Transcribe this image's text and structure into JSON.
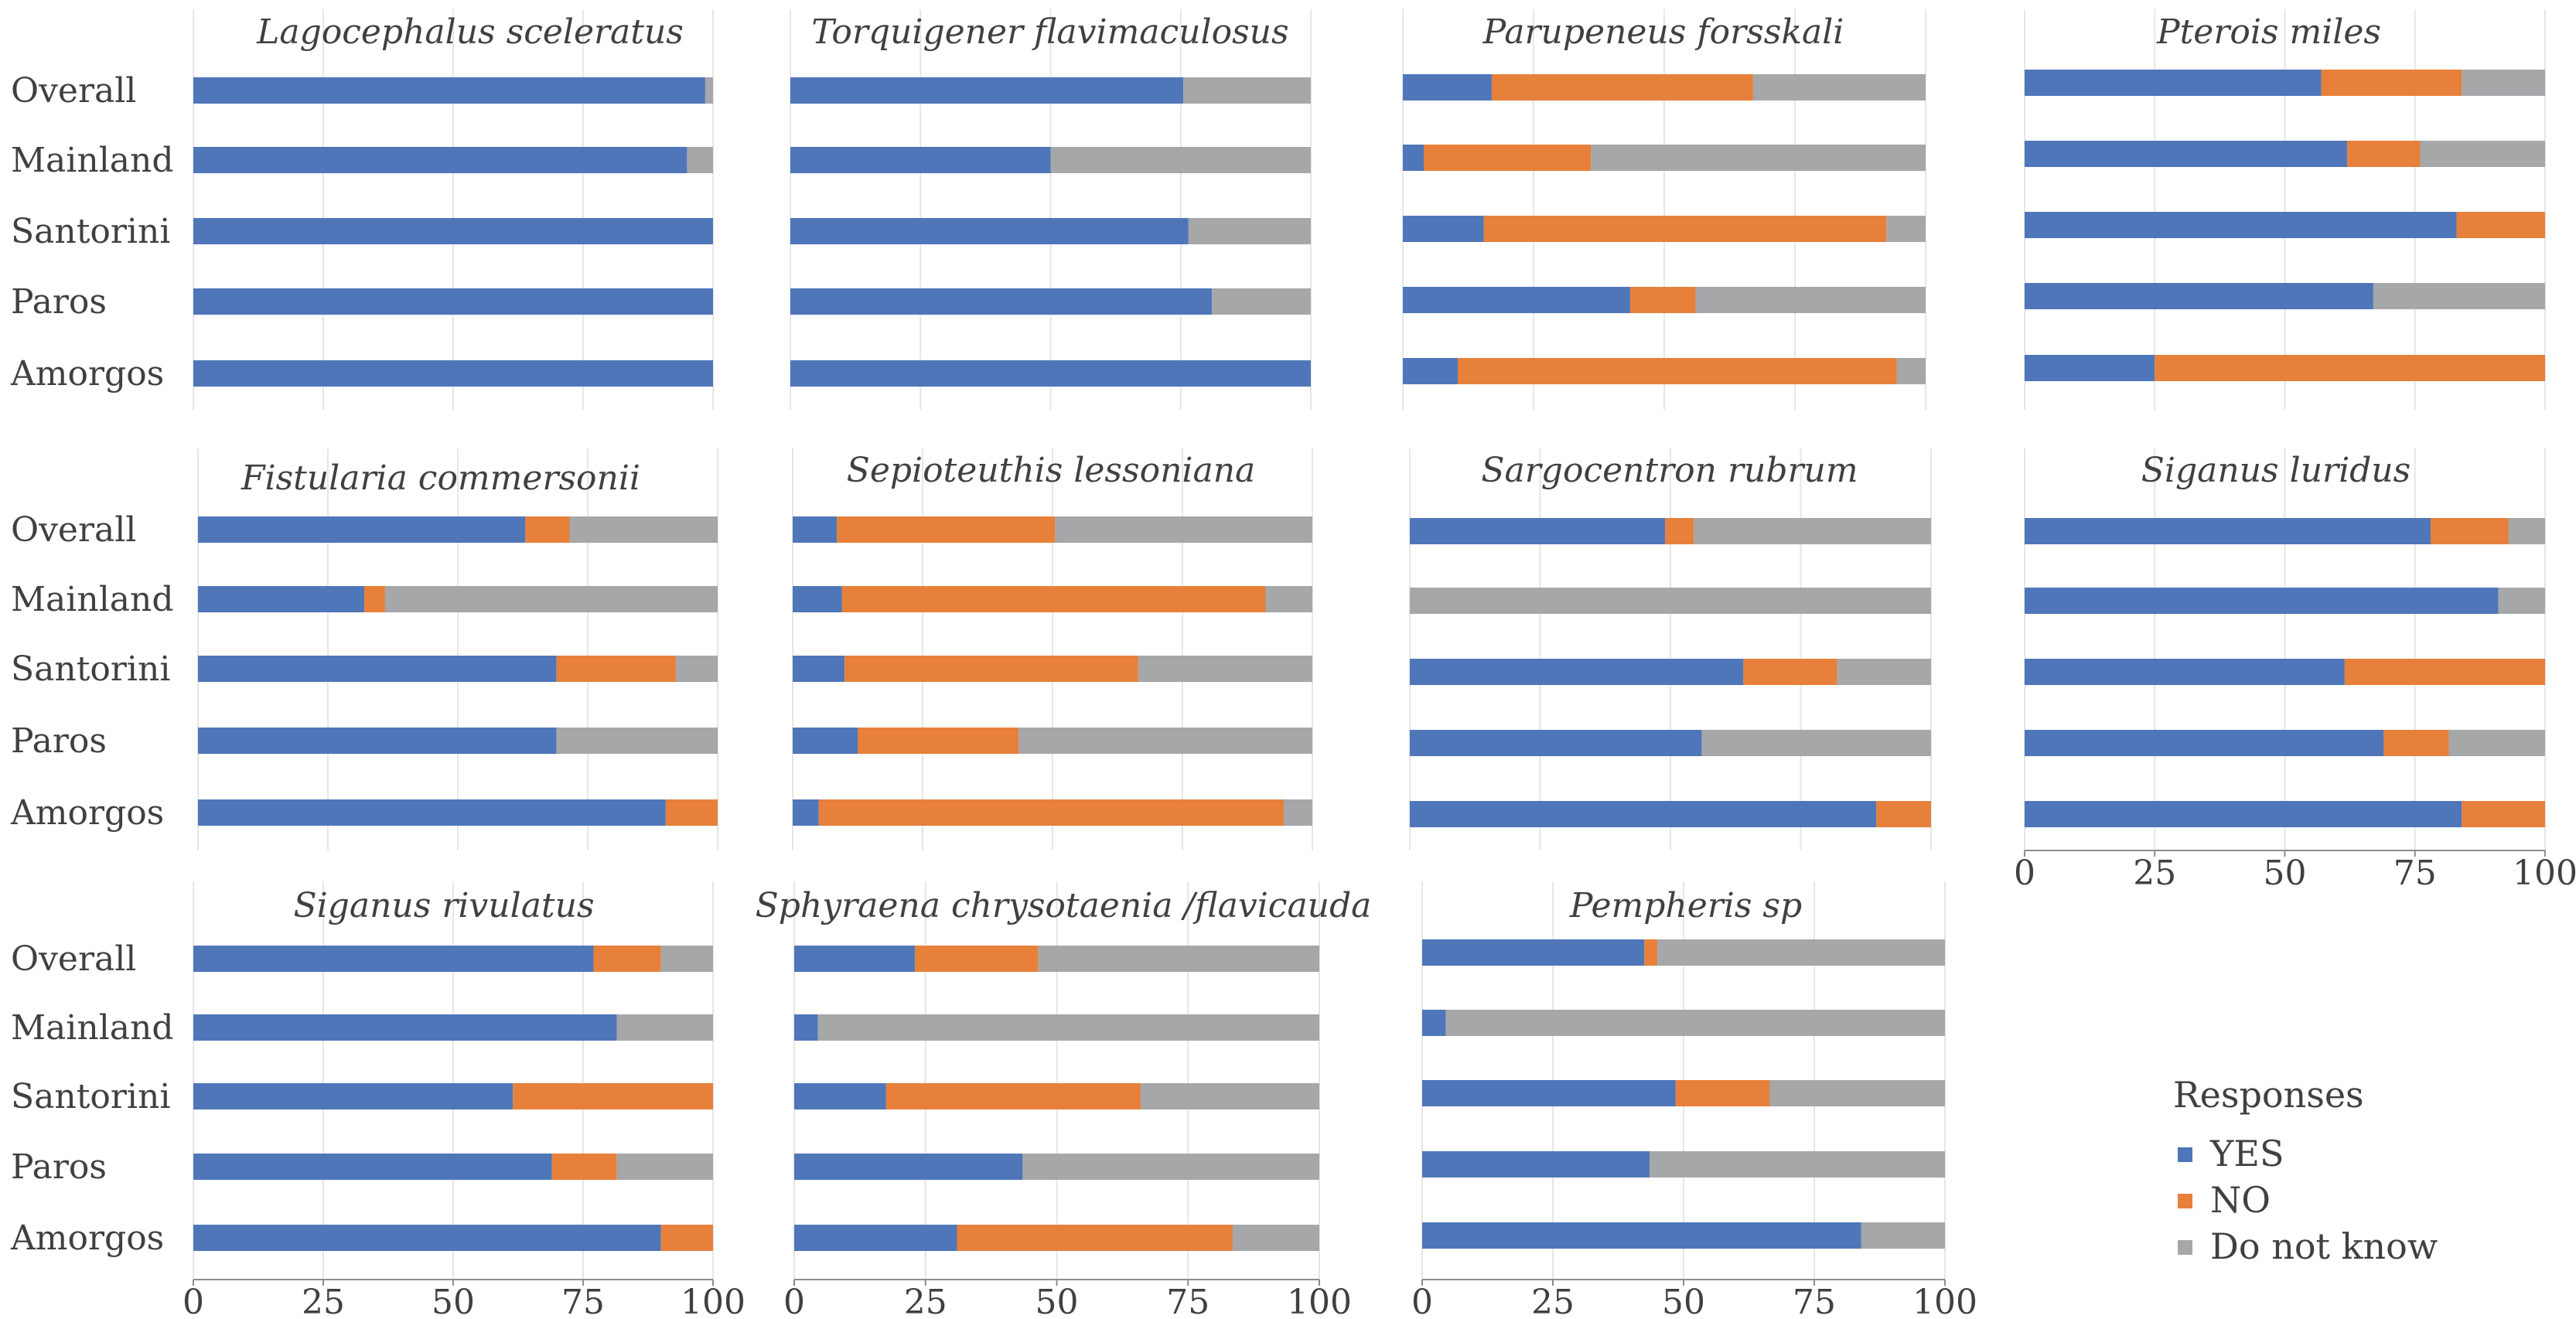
{
  "colors": {
    "yes": "#4F76B9",
    "no": "#E6803A",
    "dk": "#A5A7A9",
    "grid": "#E6E6E6",
    "axis": "#8C8C8C",
    "text": "#404040"
  },
  "categories": [
    "Overall",
    "Mainland",
    "Santorini",
    "Paros",
    "Amorgos"
  ],
  "x_ticks": [
    "0",
    "25",
    "50",
    "75",
    "100"
  ],
  "legend": {
    "title": "Responses",
    "items": [
      {
        "key": "yes",
        "label": "YES"
      },
      {
        "key": "no",
        "label": "NO"
      },
      {
        "key": "dk",
        "label": "Do not know"
      }
    ]
  },
  "chart_data": [
    {
      "type": "bar",
      "title": "Lagocephalus sceleratus",
      "xlim": [
        0,
        100
      ],
      "stacked": true,
      "orientation": "horizontal",
      "series": [
        {
          "name": "YES",
          "values": [
            98.5,
            95,
            100,
            100,
            100
          ]
        },
        {
          "name": "NO",
          "values": [
            0,
            0,
            0,
            0,
            0
          ]
        },
        {
          "name": "Do not know",
          "values": [
            1.5,
            5,
            0,
            0,
            0
          ]
        }
      ]
    },
    {
      "type": "bar",
      "title": "Torquigener flavimaculosus",
      "xlim": [
        0,
        100
      ],
      "stacked": true,
      "orientation": "horizontal",
      "series": [
        {
          "name": "YES",
          "values": [
            75.5,
            50,
            76.5,
            81,
            100
          ]
        },
        {
          "name": "NO",
          "values": [
            0,
            0,
            0,
            0,
            0
          ]
        },
        {
          "name": "Do not know",
          "values": [
            24.5,
            50,
            23.5,
            19,
            0
          ]
        }
      ]
    },
    {
      "type": "bar",
      "title": "Parupeneus forsskali",
      "xlim": [
        0,
        100
      ],
      "stacked": true,
      "orientation": "horizontal",
      "series": [
        {
          "name": "YES",
          "values": [
            17,
            4,
            15.5,
            43.5,
            10.5
          ]
        },
        {
          "name": "NO",
          "values": [
            50,
            32,
            77,
            12.5,
            84
          ]
        },
        {
          "name": "Do not know",
          "values": [
            33,
            64,
            7.5,
            44,
            5.5
          ]
        }
      ]
    },
    {
      "type": "bar",
      "title": "Pterois miles",
      "xlim": [
        0,
        100
      ],
      "stacked": true,
      "orientation": "horizontal",
      "series": [
        {
          "name": "YES",
          "values": [
            57,
            62,
            83,
            67,
            25
          ]
        },
        {
          "name": "NO",
          "values": [
            27,
            14,
            17,
            0,
            75
          ]
        },
        {
          "name": "Do not know",
          "values": [
            16,
            24,
            0,
            33,
            0
          ]
        }
      ]
    },
    {
      "type": "bar",
      "title": "Fistularia commersonii",
      "xlim": [
        0,
        100
      ],
      "stacked": true,
      "orientation": "horizontal",
      "series": [
        {
          "name": "YES",
          "values": [
            63,
            32,
            69,
            69,
            90
          ]
        },
        {
          "name": "NO",
          "values": [
            8.5,
            4,
            23,
            0,
            10
          ]
        },
        {
          "name": "Do not know",
          "values": [
            28.5,
            64,
            8,
            31,
            0
          ]
        }
      ]
    },
    {
      "type": "bar",
      "title": "Sepioteuthis lessoniana",
      "xlim": [
        0,
        100
      ],
      "stacked": true,
      "orientation": "horizontal",
      "series": [
        {
          "name": "YES",
          "values": [
            8.5,
            9.5,
            10,
            12.5,
            5
          ]
        },
        {
          "name": "NO",
          "values": [
            42,
            81.5,
            56.5,
            31,
            89.5
          ]
        },
        {
          "name": "Do not know",
          "values": [
            49.5,
            9,
            33.5,
            56.5,
            5.5
          ]
        }
      ]
    },
    {
      "type": "bar",
      "title": "Sargocentron rubrum",
      "xlim": [
        0,
        100
      ],
      "stacked": true,
      "orientation": "horizontal",
      "series": [
        {
          "name": "YES",
          "values": [
            49,
            0,
            64,
            56,
            89.5
          ]
        },
        {
          "name": "NO",
          "values": [
            5.5,
            0,
            18,
            0,
            10.5
          ]
        },
        {
          "name": "Do not know",
          "values": [
            45.5,
            100,
            18,
            44,
            0
          ]
        }
      ]
    },
    {
      "type": "bar",
      "title": "Siganus luridus",
      "xlim": [
        0,
        100
      ],
      "stacked": true,
      "orientation": "horizontal",
      "series": [
        {
          "name": "YES",
          "values": [
            78,
            91,
            61.5,
            69,
            84
          ]
        },
        {
          "name": "NO",
          "values": [
            15,
            0,
            38.5,
            12.5,
            16
          ]
        },
        {
          "name": "Do not know",
          "values": [
            7,
            9,
            0,
            18.5,
            0
          ]
        }
      ]
    },
    {
      "type": "bar",
      "title": "Siganus rivulatus",
      "xlim": [
        0,
        100
      ],
      "stacked": true,
      "orientation": "horizontal",
      "series": [
        {
          "name": "YES",
          "values": [
            77,
            81.5,
            61.5,
            69,
            90
          ]
        },
        {
          "name": "NO",
          "values": [
            13,
            0,
            38.5,
            12.5,
            10
          ]
        },
        {
          "name": "Do not know",
          "values": [
            10,
            18.5,
            0,
            18.5,
            0
          ]
        }
      ]
    },
    {
      "type": "bar",
      "title": "Sphyraena chrysotaenia /flavicauda",
      "xlim": [
        0,
        100
      ],
      "stacked": true,
      "orientation": "horizontal",
      "series": [
        {
          "name": "YES",
          "values": [
            23,
            4.5,
            17.5,
            43.5,
            31
          ]
        },
        {
          "name": "NO",
          "values": [
            23.5,
            0,
            48.5,
            0,
            52.5
          ]
        },
        {
          "name": "Do not know",
          "values": [
            53.5,
            95.5,
            34,
            56.5,
            16.5
          ]
        }
      ]
    },
    {
      "type": "bar",
      "title": "Pempheris sp",
      "xlim": [
        0,
        100
      ],
      "stacked": true,
      "orientation": "horizontal",
      "series": [
        {
          "name": "YES",
          "values": [
            42.5,
            4.5,
            48.5,
            43.5,
            84
          ]
        },
        {
          "name": "NO",
          "values": [
            2.5,
            0,
            18,
            0,
            0
          ]
        },
        {
          "name": "Do not know",
          "values": [
            55,
            95.5,
            33.5,
            56.5,
            16
          ]
        }
      ]
    }
  ]
}
